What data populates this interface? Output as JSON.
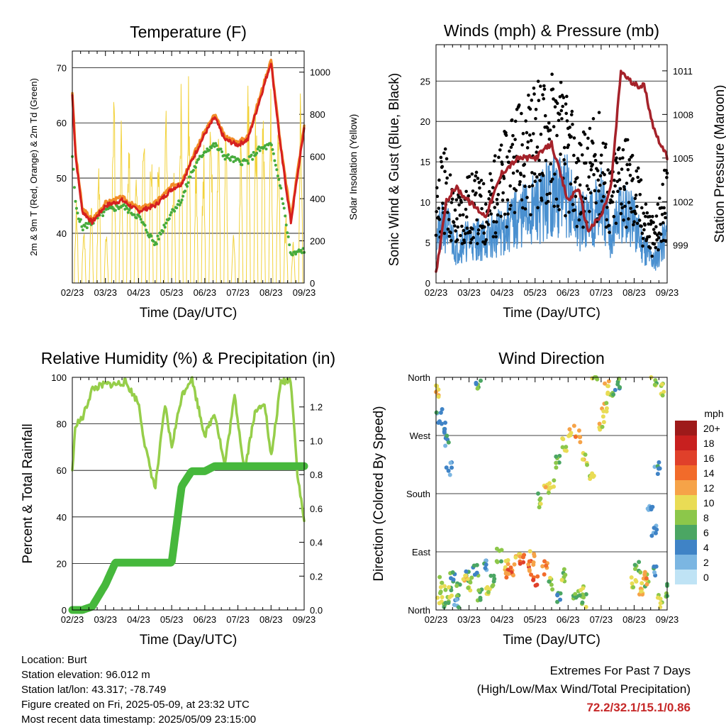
{
  "time_ticks": [
    "02/23",
    "03/23",
    "04/23",
    "05/23",
    "06/23",
    "07/23",
    "08/23",
    "09/23"
  ],
  "time_label": "Time (Day/UTC)",
  "colors": {
    "temp_2m": "#d62020",
    "temp_9m": "#f28c28",
    "dewpoint": "#46ab3c",
    "insolation": "#f2d23c",
    "wind": "#4a90d0",
    "gust": "#000000",
    "pressure": "#a5222a",
    "rh": "#96ce4a",
    "precip": "#46b83c"
  },
  "chart_data": [
    {
      "id": "temperature",
      "type": "line",
      "title": "Temperature (F)",
      "xlabel": "Time (Day/UTC)",
      "ylabel": "2m & 9m T (Red, Orange) & 2m Td (Green)",
      "ylabel_right": "Solar Insolation (Yellow)",
      "ylim": [
        31,
        73
      ],
      "y_ticks": [
        40,
        50,
        60,
        70
      ],
      "y2lim": [
        0,
        1100
      ],
      "y2_ticks": [
        0,
        200,
        400,
        600,
        800,
        1000
      ],
      "x": [
        0,
        0.1,
        0.3,
        0.6,
        1,
        1.5,
        2,
        2.5,
        3,
        3.3,
        3.6,
        4,
        4.3,
        4.6,
        5,
        5.3,
        5.6,
        6,
        6.3,
        6.6,
        7
      ],
      "series": [
        {
          "key": "t2m",
          "values": [
            65,
            54,
            44,
            42,
            45,
            46,
            44,
            45,
            48,
            49,
            53,
            58,
            61,
            57,
            56,
            57,
            63,
            71,
            55,
            42,
            59
          ]
        },
        {
          "key": "t9m",
          "values": [
            65.5,
            54.5,
            44.5,
            42.5,
            45.5,
            46.5,
            44.5,
            45.5,
            48.5,
            49.5,
            53.5,
            58.5,
            61.5,
            57.5,
            56.5,
            57.5,
            63.5,
            71.5,
            55.5,
            43,
            59.5
          ]
        },
        {
          "key": "td",
          "values": [
            54,
            45,
            41,
            42,
            44,
            45,
            43,
            38,
            44,
            46,
            51,
            55,
            56,
            54,
            53,
            53,
            55,
            56,
            48,
            36,
            37
          ]
        }
      ],
      "insolation_peaks": [
        430,
        300,
        420,
        580,
        260,
        1000,
        830,
        760,
        580,
        900,
        700,
        740,
        900,
        580,
        1060,
        1010,
        650,
        700,
        900,
        880,
        800,
        300,
        720,
        1000,
        960,
        930,
        950,
        800,
        350,
        210,
        960
      ],
      "insolation_days": 31
    },
    {
      "id": "winds",
      "type": "line",
      "title": "Winds (mph) & Pressure (mb)",
      "xlabel": "Time (Day/UTC)",
      "ylabel": "Sonic Wind & Gust (Blue, Black)",
      "ylabel_right": "Station Pressure (Maroon)",
      "ylim": [
        0,
        29.5
      ],
      "y_ticks": [
        0,
        5,
        10,
        15,
        20,
        25
      ],
      "y2lim": [
        996.4,
        1012.8
      ],
      "y2_ticks": [
        999,
        1002,
        1005,
        1008,
        1011
      ],
      "x": [
        0,
        0.3,
        0.6,
        1,
        1.5,
        2,
        2.5,
        3,
        3.5,
        4,
        4.3,
        4.6,
        5,
        5.3,
        5.6,
        6,
        6.3,
        6.6,
        7
      ],
      "series": [
        {
          "key": "wind",
          "values": [
            6,
            8,
            5,
            6,
            6,
            7,
            9,
            10,
            12,
            12,
            8,
            9,
            11,
            6,
            10,
            8,
            5,
            3,
            7
          ]
        },
        {
          "key": "gust",
          "values": [
            12,
            13,
            9,
            11,
            10,
            14,
            17,
            19,
            21,
            18,
            14,
            15,
            17,
            11,
            16,
            13,
            9,
            6,
            12
          ]
        },
        {
          "key": "pressure",
          "values": [
            997,
            1002,
            1003,
            1002,
            1001,
            1004,
            1005,
            1005,
            1006,
            1002,
            1003,
            1000,
            1001,
            1003,
            1011,
            1010,
            1010,
            1007,
            1005
          ]
        }
      ]
    },
    {
      "id": "humidity",
      "type": "line",
      "title": "Relative Humidity (%) & Precipitation (in)",
      "xlabel": "Time (Day/UTC)",
      "ylabel": "Percent & Total Rainfall",
      "ylim": [
        0,
        100
      ],
      "y_ticks": [
        0,
        20,
        40,
        60,
        80,
        100
      ],
      "y2lim": [
        0,
        1.375
      ],
      "y2_ticks": [
        "0.0",
        "0.2",
        "0.4",
        "0.6",
        "0.8",
        "1.0",
        "1.2"
      ],
      "x": [
        0,
        0.1,
        0.3,
        0.6,
        1,
        1.3,
        1.6,
        2,
        2.2,
        2.5,
        2.8,
        3,
        3.3,
        3.6,
        4,
        4.3,
        4.6,
        4.9,
        5.2,
        5.5,
        5.8,
        6,
        6.3,
        6.6,
        6.8,
        7
      ],
      "series": [
        {
          "key": "rh",
          "values": [
            60,
            80,
            82,
            95,
            97,
            97,
            98,
            89,
            70,
            52,
            88,
            70,
            92,
            100,
            75,
            85,
            62,
            92,
            60,
            84,
            90,
            65,
            98,
            99,
            58,
            38
          ]
        },
        {
          "key": "precip",
          "values": [
            0,
            0,
            0,
            0.02,
            0.15,
            0.28,
            0.28,
            0.28,
            0.28,
            0.28,
            0.28,
            0.28,
            0.73,
            0.82,
            0.82,
            0.85,
            0.85,
            0.85,
            0.85,
            0.85,
            0.85,
            0.85,
            0.85,
            0.85,
            0.85,
            0.85
          ]
        }
      ]
    },
    {
      "id": "wind_direction",
      "type": "scatter",
      "title": "Wind Direction",
      "xlabel": "Time (Day/UTC)",
      "ylabel": "Direction (Colored By Speed)",
      "y_ticks": [
        "North",
        "East",
        "South",
        "West",
        "North"
      ],
      "ylim": [
        0,
        360
      ],
      "legend_title": "mph",
      "legend_labels": [
        "20+",
        "18",
        "16",
        "14",
        "12",
        "10",
        "8",
        "6",
        "4",
        "2",
        "0"
      ],
      "legend_colors": [
        "#9e1a1a",
        "#c8201f",
        "#e0402a",
        "#f26b2a",
        "#f6a348",
        "#e9dc55",
        "#8cc74a",
        "#4ba663",
        "#3f83c6",
        "#7bb6e2",
        "#bfe3f5"
      ],
      "points": [
        [
          0.1,
          20,
          9
        ],
        [
          0.2,
          40,
          8
        ],
        [
          0.3,
          15,
          7
        ],
        [
          0.4,
          25,
          8
        ],
        [
          0.5,
          55,
          6
        ],
        [
          0.7,
          30,
          7
        ],
        [
          0.9,
          50,
          5
        ],
        [
          1,
          40,
          8
        ],
        [
          1.2,
          60,
          5
        ],
        [
          1.3,
          25,
          6
        ],
        [
          1.5,
          70,
          3
        ],
        [
          1.7,
          45,
          6
        ],
        [
          1.9,
          85,
          8
        ],
        [
          2.1,
          70,
          11
        ],
        [
          2.3,
          60,
          12
        ],
        [
          2.5,
          90,
          10
        ],
        [
          2.8,
          65,
          13
        ],
        [
          3,
          45,
          15
        ],
        [
          3.3,
          65,
          12
        ],
        [
          3.5,
          40,
          8
        ],
        [
          3.7,
          20,
          5
        ],
        [
          3.9,
          55,
          7
        ],
        [
          4.2,
          25,
          6
        ],
        [
          4.5,
          15,
          7
        ],
        [
          3.1,
          170,
          8
        ],
        [
          3.3,
          200,
          10
        ],
        [
          3.5,
          190,
          9
        ],
        [
          3.7,
          230,
          7
        ],
        [
          3.9,
          255,
          9
        ],
        [
          4.1,
          275,
          10
        ],
        [
          4.3,
          270,
          11
        ],
        [
          4.5,
          235,
          9
        ],
        [
          4.7,
          210,
          8
        ],
        [
          5,
          290,
          9
        ],
        [
          5.1,
          310,
          10
        ],
        [
          5.3,
          330,
          8
        ],
        [
          5.5,
          350,
          5
        ],
        [
          6,
          40,
          9
        ],
        [
          6.2,
          35,
          10
        ],
        [
          6.4,
          45,
          8
        ],
        [
          6.6,
          60,
          4
        ],
        [
          6.8,
          15,
          9
        ],
        [
          7,
          30,
          6
        ],
        [
          6.9,
          340,
          8
        ],
        [
          6.7,
          220,
          3
        ],
        [
          6.5,
          150,
          2
        ],
        [
          6.6,
          120,
          3
        ],
        [
          0.05,
          340,
          10
        ],
        [
          0.1,
          300,
          4
        ],
        [
          0.2,
          280,
          5
        ],
        [
          0.3,
          260,
          3
        ],
        [
          0.4,
          220,
          4
        ],
        [
          1.3,
          350,
          6
        ],
        [
          4.8,
          360,
          8
        ],
        [
          6.6,
          355,
          7
        ],
        [
          0.9,
          45,
          10
        ],
        [
          2.6,
          75,
          14
        ],
        [
          2.9,
          80,
          12
        ],
        [
          1.6,
          35,
          9
        ],
        [
          6.3,
          50,
          11
        ],
        [
          6.1,
          65,
          7
        ],
        [
          0.6,
          10,
          3
        ],
        [
          4.4,
          30,
          8
        ],
        [
          5.2,
          345,
          10
        ],
        [
          2.2,
          55,
          13
        ]
      ]
    }
  ],
  "info": {
    "location": "Location: Burt",
    "elevation": "Station elevation: 96.012 m",
    "latlon": "Station lat/lon: 43.317; -78.749",
    "created": "Figure created on Fri, 2025-05-09, at 23:32 UTC",
    "recent": "Most recent data timestamp: 2025/05/09 23:15:00"
  },
  "extremes": {
    "title": "Extremes For Past 7 Days",
    "subtitle": "(High/Low/Max Wind/Total Precipitation)",
    "values": "72.2/32.1/15.1/0.86"
  }
}
